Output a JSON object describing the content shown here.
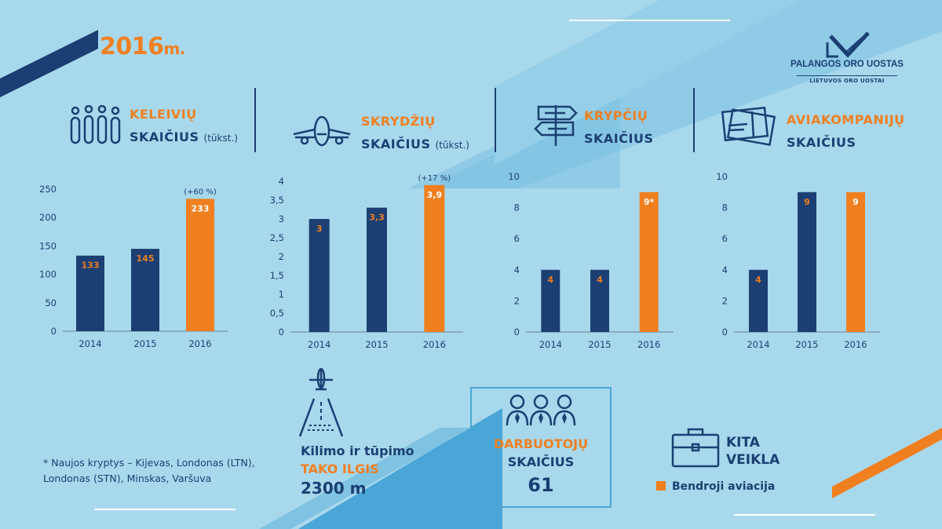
{
  "header": {
    "year": "2016",
    "year_suffix": "m."
  },
  "logo": {
    "name": "PALANGOS ORO UOSTAS",
    "sub": "LIETUVOS ORO UOSTAI"
  },
  "colors": {
    "navy": "#1b3f73",
    "orange": "#f07f1f",
    "background": "#a8d8ec",
    "accent_light": "#4aa6d6"
  },
  "sections": [
    {
      "line1": "KELEIVIŲ",
      "line2": "SKAIČIUS",
      "unit": "(tūkst.)",
      "icon": "passengers-icon"
    },
    {
      "line1": "SKRYDŽIŲ",
      "line2": "SKAIČIUS",
      "unit": "(tūkst.)",
      "icon": "airplane-icon"
    },
    {
      "line1": "KRYPČIŲ",
      "line2": "SKAIČIUS",
      "unit": "",
      "icon": "signpost-icon"
    },
    {
      "line1": "AVIAKOMPANIJŲ",
      "line2": "SKAIČIUS",
      "unit": "",
      "icon": "tickets-icon"
    }
  ],
  "chart_data": [
    {
      "type": "bar",
      "categories": [
        "2014",
        "2015",
        "2016"
      ],
      "values": [
        133,
        145,
        233
      ],
      "labels": [
        "133",
        "145",
        "233"
      ],
      "highlight_index": 2,
      "annotation": "(+60 %)",
      "ylim": [
        0,
        250
      ],
      "yticks": [
        0,
        50,
        100,
        150,
        200,
        250
      ],
      "ytick_labels": [
        "0",
        "50",
        "100",
        "150",
        "200",
        "250"
      ]
    },
    {
      "type": "bar",
      "categories": [
        "2014",
        "2015",
        "2016"
      ],
      "values": [
        3,
        3.3,
        3.9
      ],
      "labels": [
        "3",
        "3,3",
        "3,9"
      ],
      "highlight_index": 2,
      "annotation": "(+17 %)",
      "ylim": [
        0,
        4
      ],
      "yticks": [
        0,
        0.5,
        1,
        1.5,
        2,
        2.5,
        3,
        3.5,
        4
      ],
      "ytick_labels": [
        "0",
        "0,5",
        "1",
        "1,5",
        "2",
        "2,5",
        "3",
        "3,5",
        "4"
      ]
    },
    {
      "type": "bar",
      "categories": [
        "2014",
        "2015",
        "2016"
      ],
      "values": [
        4,
        4,
        9
      ],
      "labels": [
        "4",
        "4",
        "9*"
      ],
      "highlight_index": 2,
      "annotation": "",
      "ylim": [
        0,
        10
      ],
      "yticks": [
        0,
        2,
        4,
        6,
        8,
        10
      ],
      "ytick_labels": [
        "0",
        "2",
        "4",
        "6",
        "8",
        "10"
      ]
    },
    {
      "type": "bar",
      "categories": [
        "2014",
        "2015",
        "2016"
      ],
      "values": [
        4,
        9,
        9
      ],
      "labels": [
        "4",
        "9",
        "9"
      ],
      "highlight_index": 2,
      "annotation": "",
      "ylim": [
        0,
        10
      ],
      "yticks": [
        0,
        2,
        4,
        6,
        8,
        10
      ],
      "ytick_labels": [
        "0",
        "2",
        "4",
        "6",
        "8",
        "10"
      ]
    }
  ],
  "footnote": {
    "line1": "* Naujos kryptys – Kijevas, Londonas (LTN),",
    "line2": "Londonas (STN), Minskas, Varšuva"
  },
  "runway": {
    "line1": "Kilimo ir tūpimo",
    "line2": "TAKO ILGIS",
    "value": "2300 m"
  },
  "staff": {
    "line1": "DARBUOTOJŲ",
    "line2": "SKAIČIUS",
    "value": "61"
  },
  "other": {
    "line1": "KITA",
    "line2": "VEIKLA",
    "legend": "Bendroji aviacija"
  }
}
